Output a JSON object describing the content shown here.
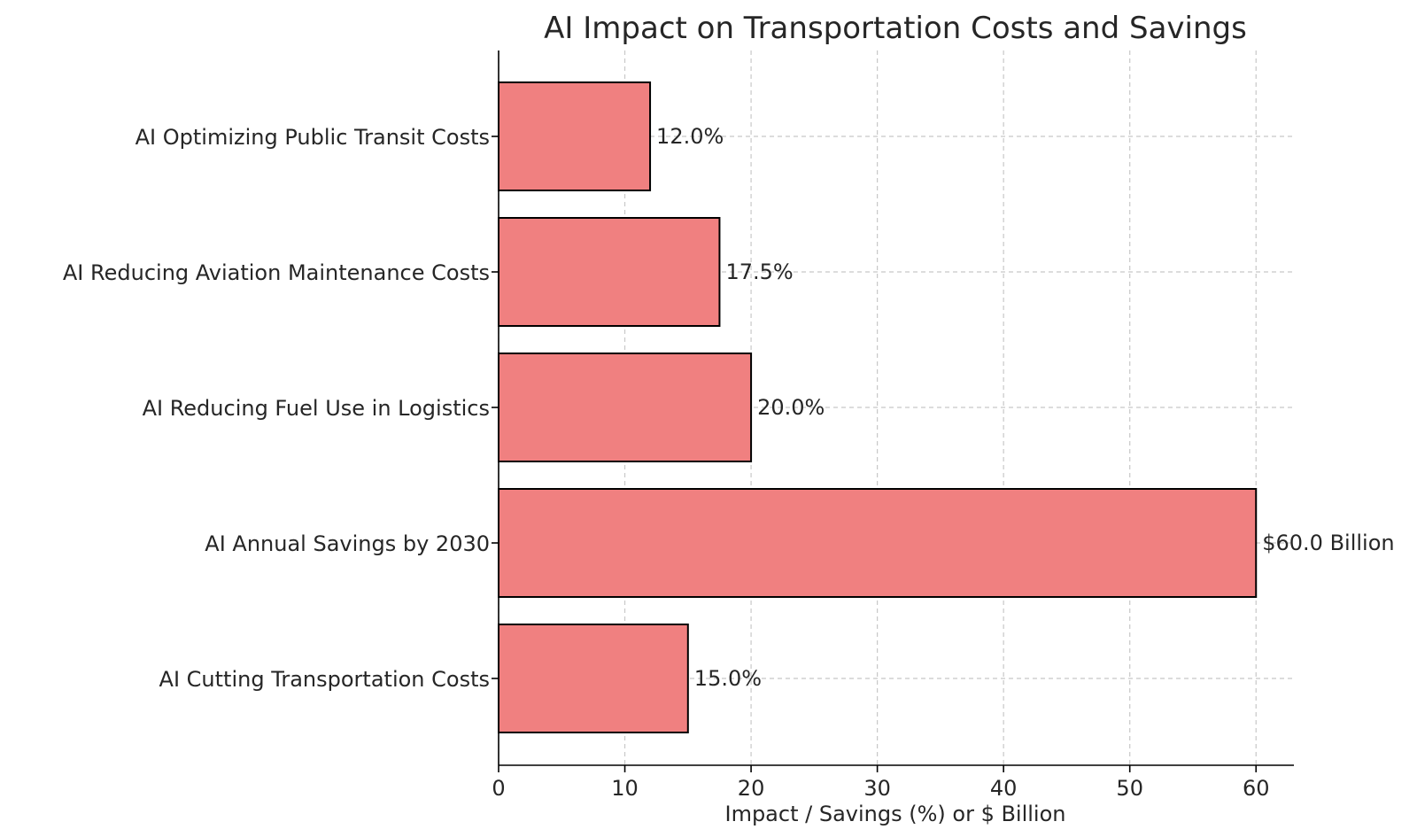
{
  "chart_data": {
    "type": "bar",
    "orientation": "horizontal",
    "title": "AI Impact on Transportation Costs and Savings",
    "xlabel": "Impact / Savings (%) or $ Billion",
    "ylabel": "",
    "xlim": [
      0,
      63
    ],
    "xticks": [
      0,
      10,
      20,
      30,
      40,
      50,
      60
    ],
    "grid": true,
    "categories": [
      "AI Cutting Transportation Costs",
      "AI Annual Savings by 2030",
      "AI Reducing Fuel Use in Logistics",
      "AI Reducing Aviation Maintenance Costs",
      "AI Optimizing Public Transit Costs"
    ],
    "values": [
      15.0,
      60.0,
      20.0,
      17.5,
      12.0
    ],
    "data_labels": [
      "15.0%",
      "$60.0 Billion",
      "20.0%",
      "17.5%",
      "12.0%"
    ],
    "bar_color": "#f08080",
    "edge_color": "#000000"
  }
}
